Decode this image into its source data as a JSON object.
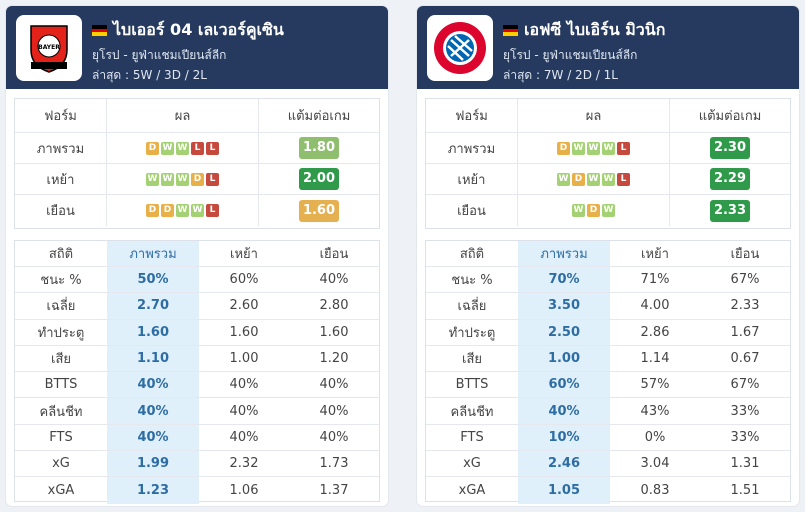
{
  "teams": [
    {
      "name": "ไบเออร์ 04 เลเวอร์คูเซิน",
      "logo_icon": "bayer-leverkusen-crest-icon",
      "flag_colors": [
        "#000000",
        "#dd0000",
        "#ffce00"
      ],
      "league": "ยุโรป - ยูฟ่าแชมเปียนส์ลีก",
      "latest": "ล่าสุด : 5W / 3D / 2L",
      "form_headers": {
        "form": "ฟอร์ม",
        "result": "ผล",
        "ppg": "แต้มต่อเกม"
      },
      "form_rows": [
        {
          "label": "ภาพรวม",
          "results": [
            "D",
            "W",
            "W",
            "L",
            "L"
          ],
          "ppg": "1.80",
          "ppg_color": "#8fbe6f"
        },
        {
          "label": "เหย้า",
          "results": [
            "W",
            "W",
            "W",
            "D",
            "L"
          ],
          "ppg": "2.00",
          "ppg_color": "#2e9a4a"
        },
        {
          "label": "เยือน",
          "results": [
            "D",
            "D",
            "W",
            "W",
            "L"
          ],
          "ppg": "1.60",
          "ppg_color": "#e5b050"
        }
      ],
      "stat_headers": {
        "stat": "สถิติ",
        "overall": "ภาพรวม",
        "home": "เหย้า",
        "away": "เยือน"
      },
      "stats": [
        {
          "label": "ชนะ %",
          "overall": "50%",
          "home": "60%",
          "away": "40%"
        },
        {
          "label": "เฉลี่ย",
          "overall": "2.70",
          "home": "2.60",
          "away": "2.80"
        },
        {
          "label": "ทำประตู",
          "overall": "1.60",
          "home": "1.60",
          "away": "1.60"
        },
        {
          "label": "เสีย",
          "overall": "1.10",
          "home": "1.00",
          "away": "1.20"
        },
        {
          "label": "BTTS",
          "overall": "40%",
          "home": "40%",
          "away": "40%"
        },
        {
          "label": "คลีนชีท",
          "overall": "40%",
          "home": "40%",
          "away": "40%"
        },
        {
          "label": "FTS",
          "overall": "40%",
          "home": "40%",
          "away": "40%"
        },
        {
          "label": "xG",
          "overall": "1.99",
          "home": "2.32",
          "away": "1.73"
        },
        {
          "label": "xGA",
          "overall": "1.23",
          "home": "1.06",
          "away": "1.37"
        }
      ]
    },
    {
      "name": "เอฟซี ไบเอิร์น มิวนิก",
      "logo_icon": "bayern-munich-crest-icon",
      "flag_colors": [
        "#000000",
        "#dd0000",
        "#ffce00"
      ],
      "league": "ยุโรป - ยูฟ่าแชมเปียนส์ลีก",
      "latest": "ล่าสุด : 7W / 2D / 1L",
      "form_headers": {
        "form": "ฟอร์ม",
        "result": "ผล",
        "ppg": "แต้มต่อเกม"
      },
      "form_rows": [
        {
          "label": "ภาพรวม",
          "results": [
            "D",
            "W",
            "W",
            "W",
            "L"
          ],
          "ppg": "2.30",
          "ppg_color": "#2e9a4a"
        },
        {
          "label": "เหย้า",
          "results": [
            "W",
            "D",
            "W",
            "W",
            "L"
          ],
          "ppg": "2.29",
          "ppg_color": "#2e9a4a"
        },
        {
          "label": "เยือน",
          "results": [
            "W",
            "D",
            "W"
          ],
          "ppg": "2.33",
          "ppg_color": "#2e9a4a"
        }
      ],
      "stat_headers": {
        "stat": "สถิติ",
        "overall": "ภาพรวม",
        "home": "เหย้า",
        "away": "เยือน"
      },
      "stats": [
        {
          "label": "ชนะ %",
          "overall": "70%",
          "home": "71%",
          "away": "67%"
        },
        {
          "label": "เฉลี่ย",
          "overall": "3.50",
          "home": "4.00",
          "away": "2.33"
        },
        {
          "label": "ทำประตู",
          "overall": "2.50",
          "home": "2.86",
          "away": "1.67"
        },
        {
          "label": "เสีย",
          "overall": "1.00",
          "home": "1.14",
          "away": "0.67"
        },
        {
          "label": "BTTS",
          "overall": "60%",
          "home": "57%",
          "away": "67%"
        },
        {
          "label": "คลีนชีท",
          "overall": "40%",
          "home": "43%",
          "away": "33%"
        },
        {
          "label": "FTS",
          "overall": "10%",
          "home": "0%",
          "away": "33%"
        },
        {
          "label": "xG",
          "overall": "2.46",
          "home": "3.04",
          "away": "1.31"
        },
        {
          "label": "xGA",
          "overall": "1.05",
          "home": "0.83",
          "away": "1.51"
        }
      ]
    }
  ]
}
